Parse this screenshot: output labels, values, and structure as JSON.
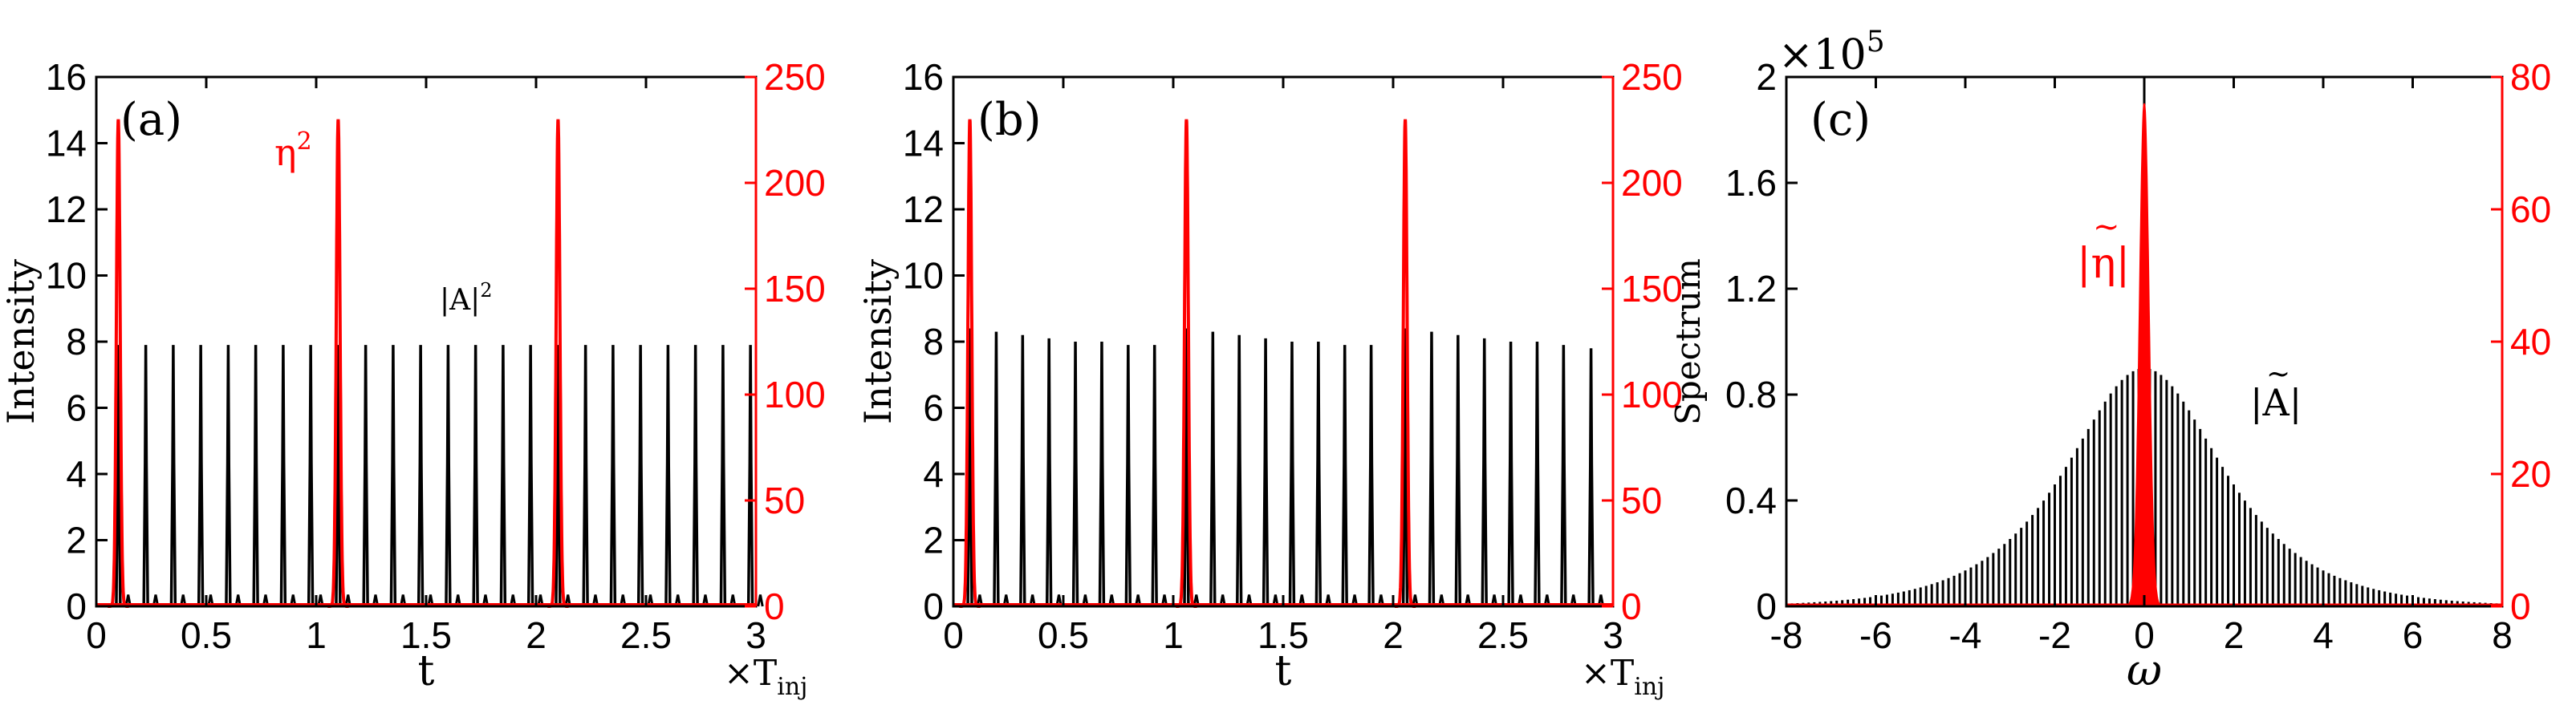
{
  "chart_data": [
    {
      "type": "line",
      "panel_label": "(a)",
      "xlabel": "t",
      "x_unit_label": "×T",
      "x_unit_sub": "inj",
      "ylabel": "Intensity",
      "xlim": [
        0,
        3
      ],
      "ylim_left": [
        0,
        16
      ],
      "ylim_right": [
        0,
        250
      ],
      "x_ticks": [
        0,
        0.5,
        1,
        1.5,
        2,
        2.5,
        3
      ],
      "y_ticks_left": [
        0,
        2,
        4,
        6,
        8,
        10,
        12,
        14,
        16
      ],
      "y_ticks_right": [
        0,
        50,
        100,
        150,
        200,
        250
      ],
      "grid": false,
      "series": [
        {
          "name": "|A|²",
          "label_text": "|A|",
          "label_sup": "2",
          "axis": "left",
          "color": "#000000",
          "pulse_start": 0.1,
          "pulse_period": 0.125,
          "pulse_count": 24,
          "pulse_peak": 7.9,
          "pulse_width": 0.003
        },
        {
          "name": "η²",
          "label_text": "η",
          "label_sup": "2",
          "axis": "right",
          "color": "#ff0000",
          "peaks": [
            [
              0.1,
              230
            ],
            [
              1.1,
              230
            ],
            [
              2.1,
              230
            ]
          ],
          "peak_width": 0.012
        }
      ]
    },
    {
      "type": "line",
      "panel_label": "(b)",
      "xlabel": "t",
      "x_unit_label": "×T",
      "x_unit_sub": "inj",
      "ylabel": "Intensity",
      "xlim": [
        0,
        3
      ],
      "ylim_left": [
        0,
        16
      ],
      "ylim_right": [
        0,
        250
      ],
      "x_ticks": [
        0,
        0.5,
        1,
        1.5,
        2,
        2.5,
        3
      ],
      "y_ticks_left": [
        0,
        2,
        4,
        6,
        8,
        10,
        12,
        14,
        16
      ],
      "y_ticks_right": [
        0,
        50,
        100,
        150,
        200,
        250
      ],
      "grid": false,
      "series": [
        {
          "axis": "left",
          "color": "#000000",
          "pulses": [
            [
              0.075,
              8.4
            ],
            [
              0.195,
              8.3
            ],
            [
              0.315,
              8.2
            ],
            [
              0.435,
              8.1
            ],
            [
              0.555,
              8.0
            ],
            [
              0.675,
              8.0
            ],
            [
              0.795,
              7.9
            ],
            [
              0.915,
              7.9
            ],
            [
              1.06,
              8.4
            ],
            [
              1.18,
              8.3
            ],
            [
              1.3,
              8.2
            ],
            [
              1.42,
              8.1
            ],
            [
              1.54,
              8.0
            ],
            [
              1.66,
              8.0
            ],
            [
              1.78,
              7.9
            ],
            [
              1.9,
              7.9
            ],
            [
              2.055,
              8.4
            ],
            [
              2.175,
              8.3
            ],
            [
              2.295,
              8.2
            ],
            [
              2.415,
              8.1
            ],
            [
              2.535,
              8.0
            ],
            [
              2.655,
              8.0
            ],
            [
              2.775,
              7.9
            ],
            [
              2.9,
              7.8
            ]
          ],
          "pulse_width": 0.003
        },
        {
          "axis": "right",
          "color": "#ff0000",
          "peaks": [
            [
              0.075,
              230
            ],
            [
              1.06,
              230
            ],
            [
              2.055,
              230
            ]
          ],
          "peak_width": 0.012
        }
      ]
    },
    {
      "type": "bar",
      "panel_label": "(c)",
      "xlabel": "ω",
      "ylabel": "Spectrum",
      "xlim": [
        -8,
        8
      ],
      "ylim_left": [
        0,
        2
      ],
      "ylim_right": [
        0,
        80
      ],
      "left_scale_text": "×10",
      "left_scale_exp": "5",
      "x_ticks": [
        -8,
        -6,
        -4,
        -2,
        0,
        2,
        4,
        6,
        8
      ],
      "y_ticks_left": [
        0,
        0.4,
        0.8,
        1.2,
        1.6,
        2
      ],
      "y_ticks_right": [
        0,
        20,
        40,
        60,
        80
      ],
      "grid": false,
      "series": [
        {
          "name": "|Ã|",
          "label_text": "|A|",
          "label_tilde": "~",
          "axis": "left",
          "color": "#000000",
          "comb_spacing": 0.125,
          "comb_range": [
            -8,
            8
          ],
          "envelope_peak": 0.9,
          "envelope_width": 1.55,
          "center_peak": 2.0
        },
        {
          "name": "|η̃|",
          "label_text": "|η|",
          "label_tilde": "~",
          "axis": "right",
          "color": "#ff0000",
          "peak": 76,
          "peak_halfwidth": 0.38
        }
      ]
    }
  ]
}
